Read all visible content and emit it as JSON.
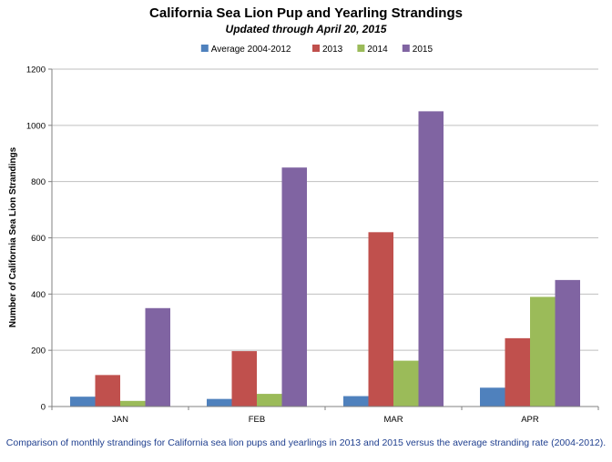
{
  "chart_data": {
    "type": "bar",
    "title": "California Sea Lion Pup and Yearling Strandings",
    "subtitle": "Updated through April 20, 2015",
    "ylabel": "Number of California Sea Lion Strandings",
    "xlabel": "",
    "categories": [
      "JAN",
      "FEB",
      "MAR",
      "APR"
    ],
    "ylim": [
      0,
      1200
    ],
    "yticks": [
      0,
      200,
      400,
      600,
      800,
      1000,
      1200
    ],
    "grid": true,
    "legend_position": "top",
    "series": [
      {
        "name": "Average 2004-2012",
        "color": "#4f81bd",
        "values": [
          35,
          27,
          37,
          67
        ]
      },
      {
        "name": "2013",
        "color": "#c0504d",
        "values": [
          112,
          197,
          620,
          243
        ]
      },
      {
        "name": "2014",
        "color": "#9bbb59",
        "values": [
          20,
          45,
          163,
          390
        ]
      },
      {
        "name": "2015",
        "color": "#8064a2",
        "values": [
          350,
          850,
          1050,
          450
        ]
      }
    ]
  },
  "caption": "Comparison of monthly strandings for California sea lion pups and yearlings in 2013 and 2015 versus the average stranding rate (2004-2012)."
}
